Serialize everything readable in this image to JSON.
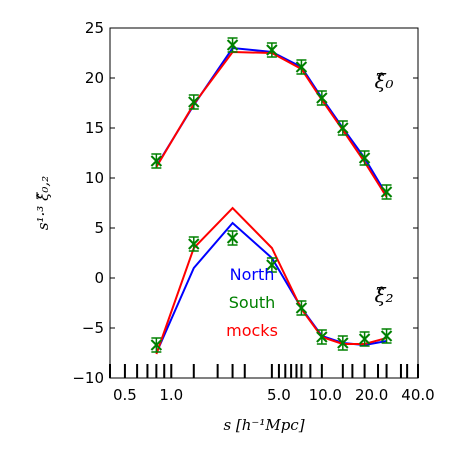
{
  "chart_data": {
    "type": "line",
    "xscale": "log",
    "xlim": [
      0.4,
      40.0
    ],
    "ylim": [
      -10,
      25
    ],
    "xlabel": "s [h⁻¹Mpc]",
    "ylabel": "s¹·³ ξ̂₀,₂",
    "xticks": [
      0.5,
      1.0,
      5.0,
      10.0,
      20.0,
      40.0
    ],
    "xtick_labels": [
      "0.5",
      "1.0",
      "5.0",
      "10.0",
      "20.0",
      "40.0"
    ],
    "yticks": [
      -10,
      -5,
      0,
      5,
      10,
      15,
      20,
      25
    ],
    "ytick_labels": [
      "−10",
      "−5",
      "0",
      "5",
      "10",
      "15",
      "20",
      "25"
    ],
    "grid": false,
    "legend_position": "center-left",
    "curve_labels": [
      "ξ̂₀",
      "ξ̂₂"
    ],
    "x": [
      0.8,
      1.4,
      2.5,
      4.5,
      7.0,
      9.5,
      13.0,
      18.0,
      25.0,
      34.0
    ],
    "series": [
      {
        "name": "North",
        "color": "#0000ff",
        "marker": "line",
        "monopole": [
          11.2,
          17.3,
          23.0,
          22.6,
          21.1,
          18.0,
          15.0,
          12.0,
          8.3,
          null
        ],
        "quadrupole": [
          -7.5,
          1.0,
          5.5,
          2.0,
          -3.0,
          -5.8,
          -6.5,
          -6.7,
          -6.3,
          null
        ]
      },
      {
        "name": "South",
        "color": "#008000",
        "marker": "x-errorbar",
        "monopole": [
          11.7,
          17.6,
          23.3,
          22.8,
          21.1,
          18.0,
          15.0,
          12.0,
          8.6,
          null
        ],
        "quadrupole": [
          -6.7,
          3.4,
          4.0,
          1.3,
          -3.0,
          -5.9,
          -6.5,
          -6.1,
          -5.8,
          null
        ],
        "error": 0.7
      },
      {
        "name": "mocks",
        "color": "#ff0000",
        "marker": "line",
        "monopole": [
          11.1,
          17.4,
          22.6,
          22.5,
          20.9,
          17.8,
          14.8,
          11.6,
          8.1,
          null
        ],
        "quadrupole": [
          -7.6,
          3.0,
          7.0,
          3.0,
          -3.1,
          -5.9,
          -6.6,
          -6.6,
          -6.0,
          null
        ]
      }
    ],
    "bin_marks": [
      0.4,
      0.5,
      0.6,
      0.7,
      0.8,
      0.9,
      1.0,
      1.4,
      2.0,
      2.5,
      3.0,
      4.5,
      5.0,
      5.5,
      6.0,
      6.5,
      7.0,
      8.0,
      9.5,
      13.0,
      15.0,
      18.0,
      22.0,
      25.0,
      31.0,
      34.0,
      40.0
    ]
  }
}
